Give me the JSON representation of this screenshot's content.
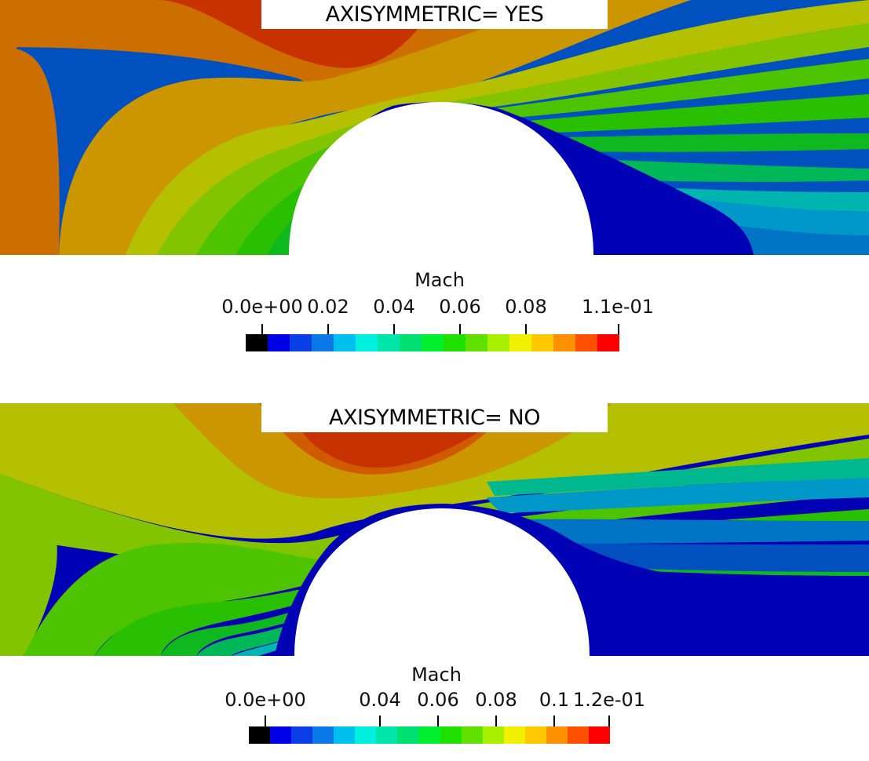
{
  "panels": [
    {
      "title": "AXISYMMETRIC= YES",
      "colorbar": {
        "title": "Mach",
        "tick_labels": [
          "0.0e+00",
          "0.02",
          "0.04",
          "0.06",
          "0.08",
          "1.1e-01"
        ]
      }
    },
    {
      "title": "AXISYMMETRIC= NO",
      "colorbar": {
        "title": "Mach",
        "tick_labels": [
          "0.0e+00",
          "0.04",
          "0.06",
          "0.08",
          "0.1",
          "1.2e-01"
        ]
      }
    }
  ],
  "colormap": [
    "#000000",
    "#0000e6",
    "#0a3fe8",
    "#0a78e6",
    "#00c0f0",
    "#00f0e0",
    "#00e6a8",
    "#00e070",
    "#00f030",
    "#20e000",
    "#60e000",
    "#a8f000",
    "#f0f000",
    "#ffc800",
    "#ff9000",
    "#ff5000",
    "#ff0000"
  ],
  "field_colors": {
    "background": "#ffffff",
    "dark_red": "#c83200",
    "orange_red": "#d05a00",
    "dark_orange": "#cc6e00",
    "amber": "#cc9600",
    "olive_yellow": "#b4c000",
    "yellow_green": "#82c400",
    "green": "#4ec400",
    "med_green": "#28c000",
    "green2": "#10b820",
    "sea_green": "#00b858",
    "teal_green": "#00b890",
    "teal": "#00b4b0",
    "cyan_blue": "#0098c8",
    "light_blue": "#0074c4",
    "blue": "#0050c0",
    "navy": "#0000b4"
  }
}
